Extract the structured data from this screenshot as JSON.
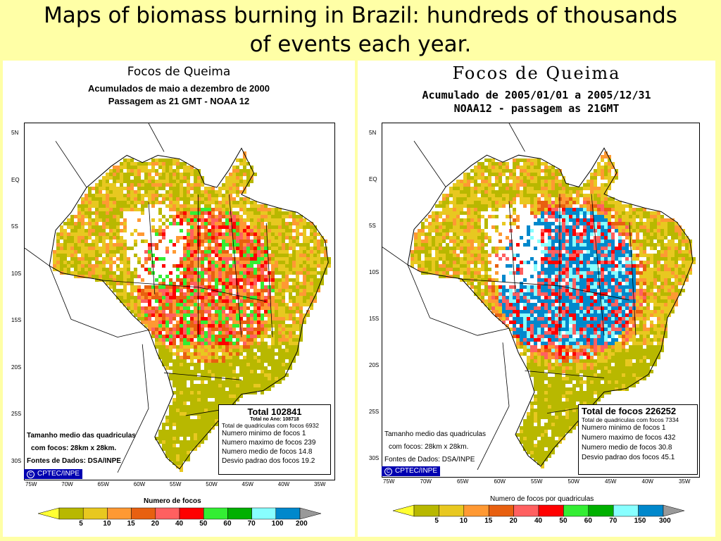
{
  "slide": {
    "title_line1": "Maps of biomass burning in Brazil: hundreds of thousands",
    "title_line2": "of events each year."
  },
  "left": {
    "title": "Focos de Queima",
    "subtitle1": "Acumulados de maio a dezembro de 2000",
    "subtitle2": "Passagem as 21 GMT - NOAA 12",
    "lat_labels": [
      "5N",
      "EQ",
      "5S",
      "10S",
      "15S",
      "20S",
      "25S",
      "30S"
    ],
    "lon_labels": [
      "75W",
      "70W",
      "65W",
      "60W",
      "55W",
      "50W",
      "45W",
      "40W",
      "35W"
    ],
    "total": "Total   102841",
    "total_year": "Total no Ano: 108718",
    "stats": [
      "Total de quadriculas com focos 6932",
      "Numero minimo de focos 1",
      "Numero maximo de focos 239",
      "Numero medio de focos 14.8",
      "Desvio padrao dos focos 19.2"
    ],
    "note1": "Tamanho medio das quadriculas",
    "note2": "com focos: 28km x 28km.",
    "note3": "Fontes de Dados: DSA/INPE",
    "cptec": "CPTEC/INPE",
    "scale_title": "Numero de focos",
    "scale_values": [
      "5",
      "10",
      "15",
      "20",
      "40",
      "50",
      "60",
      "70",
      "100",
      "200"
    ]
  },
  "right": {
    "title": "Focos de Queima",
    "subtitle1": "Acumulado de 2005/01/01 a 2005/12/31",
    "subtitle2": "NOAA12 - passagem as 21GMT",
    "lat_labels": [
      "5N",
      "EQ",
      "5S",
      "10S",
      "15S",
      "20S",
      "25S",
      "30S"
    ],
    "lon_labels": [
      "75W",
      "70W",
      "65W",
      "60W",
      "55W",
      "50W",
      "45W",
      "40W",
      "35W"
    ],
    "total": "Total de focos 226252",
    "stats": [
      "Total de quadriculas com focos 7334",
      "Numero minimo de focos 1",
      "Numero maximo de focos 432",
      "Numero medio de focos 30.8",
      "Desvio padrao dos focos 45.1"
    ],
    "note1": "Tamanho medio das quadriculas",
    "note2": "com focos: 28km x 28km.",
    "note3": "Fontes de Dados: DSA/INPE",
    "cptec": "CPTEC/INPE",
    "scale_title": "Numero de focos por quadriculas",
    "scale_values": [
      "5",
      "10",
      "15",
      "20",
      "40",
      "50",
      "60",
      "70",
      "150",
      "300"
    ]
  },
  "scale_colors": [
    "#b8b800",
    "#e8c820",
    "#ff9933",
    "#e86010",
    "#ff6060",
    "#ff0000",
    "#33ee33",
    "#00b000",
    "#88ffff",
    "#0088cc"
  ]
}
